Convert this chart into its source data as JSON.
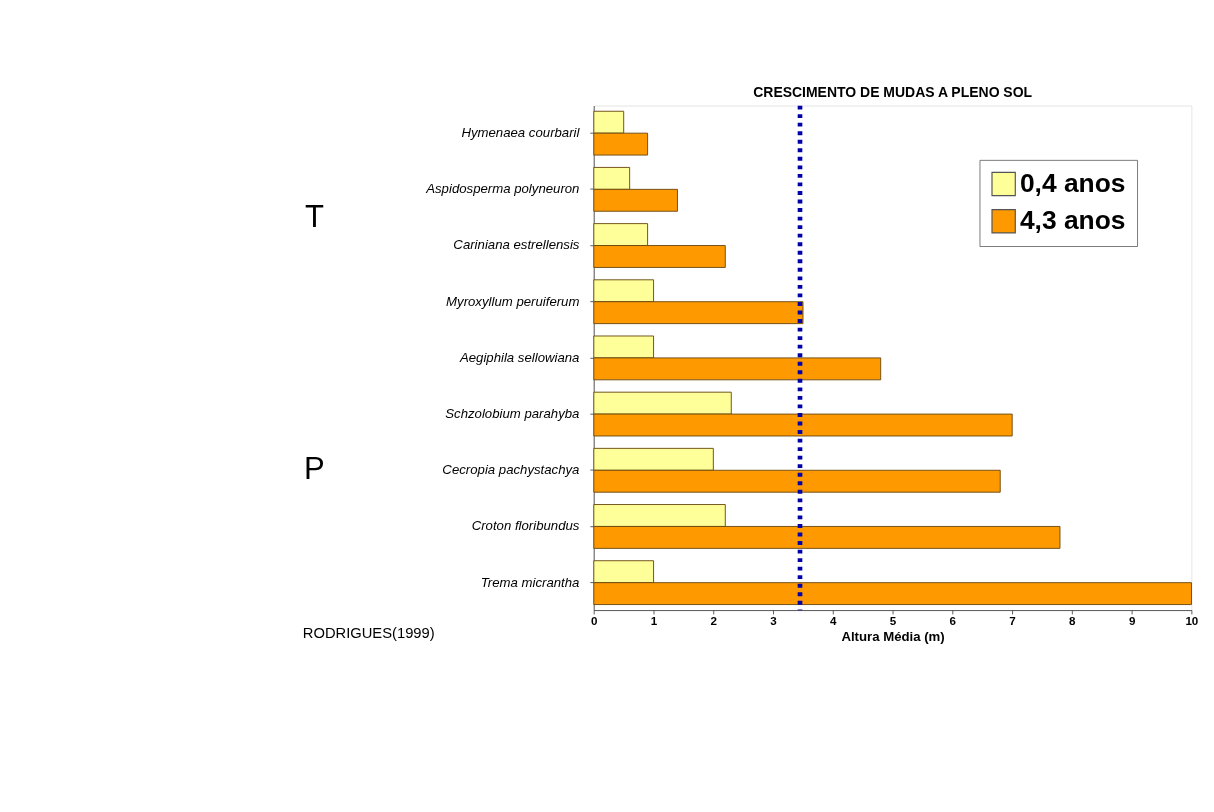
{
  "chart_data": {
    "type": "bar",
    "orientation": "horizontal",
    "title": "CRESCIMENTO DE MUDAS A PLENO SOL",
    "xlabel": "Altura Média (m)",
    "categories": [
      "Hymenaea courbaril",
      "Aspidosperma polyneuron",
      "Cariniana estrellensis",
      "Myroxyllum peruiferum",
      "Aegiphila sellowiana",
      "Schzolobium parahyba",
      "Cecropia pachystachya",
      "Croton floribundus",
      "Trema micrantha"
    ],
    "series": [
      {
        "name": "0,4 anos",
        "color": "#ffff99",
        "values": [
          0.5,
          0.6,
          0.9,
          1.0,
          1.0,
          2.3,
          2.0,
          2.2,
          1.0
        ]
      },
      {
        "name": "4,3 anos",
        "color": "#ff9900",
        "values": [
          0.9,
          1.4,
          2.2,
          3.5,
          4.8,
          7.0,
          6.8,
          7.8,
          10.0
        ]
      }
    ],
    "xlim": [
      0,
      10
    ],
    "xticks": [
      0,
      1,
      2,
      3,
      4,
      5,
      6,
      7,
      8,
      9,
      10
    ],
    "ref_lines": [
      {
        "axis": "x",
        "value": 3.45,
        "color": "#0000aa",
        "line_style": "dotted"
      }
    ],
    "annotations": [
      "T",
      "P",
      "RODRIGUES(1999)"
    ],
    "legend": "top right",
    "grid": false
  }
}
